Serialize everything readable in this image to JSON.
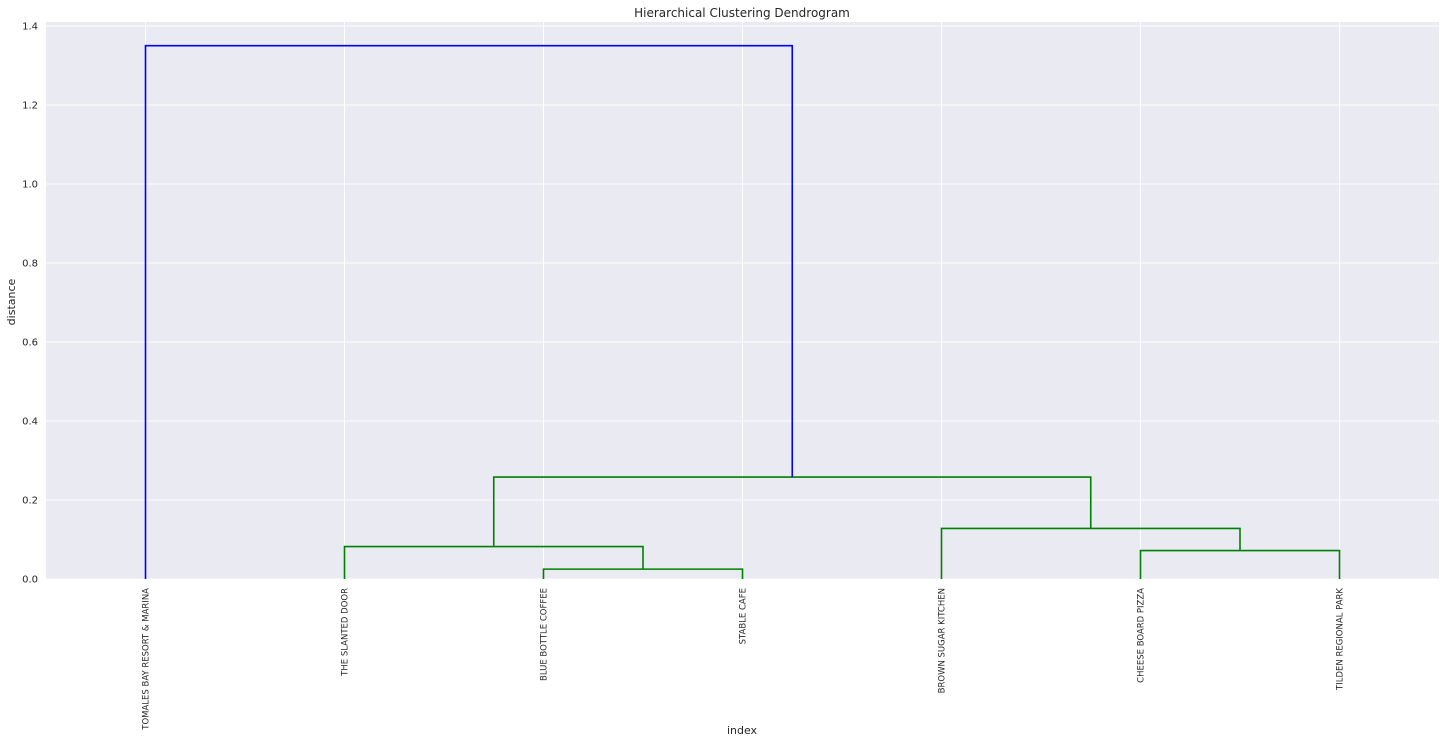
{
  "chart_data": {
    "type": "dendrogram",
    "title": "Hierarchical Clustering Dendrogram",
    "xlabel": "index",
    "ylabel": "distance",
    "ylim": [
      0,
      1.41
    ],
    "yticks": [
      0.0,
      0.2,
      0.4,
      0.6,
      0.8,
      1.0,
      1.2,
      1.4
    ],
    "ytick_labels": [
      "0.0",
      "0.2",
      "0.4",
      "0.6",
      "0.8",
      "1.0",
      "1.2",
      "1.4"
    ],
    "leaves": [
      "TOMALES BAY RESORT & MARINA",
      "THE SLANTED DOOR",
      "BLUE BOTTLE COFFEE",
      "STABLE CAFE",
      "BROWN SUGAR KITCHEN",
      "CHEESE BOARD PIZZA",
      "TILDEN REGIONAL PARK"
    ],
    "merges": [
      {
        "left": 2,
        "right": 3,
        "distance": 0.025,
        "color": "#008000"
      },
      {
        "left": 5,
        "right": 6,
        "distance": 0.072,
        "color": "#008000"
      },
      {
        "left": 1,
        "right": "m0",
        "distance": 0.082,
        "color": "#008000"
      },
      {
        "left": 4,
        "right": "m1",
        "distance": 0.128,
        "color": "#008000"
      },
      {
        "left": "m2",
        "right": "m3",
        "distance": 0.258,
        "color": "#008000"
      },
      {
        "left": 0,
        "right": "m4",
        "distance": 1.35,
        "color": "#0000ff"
      }
    ],
    "grid": true,
    "colors": {
      "background": "#eaeaf2",
      "grid": "#ffffff",
      "cluster": "#008000",
      "link": "#0000ff"
    }
  }
}
